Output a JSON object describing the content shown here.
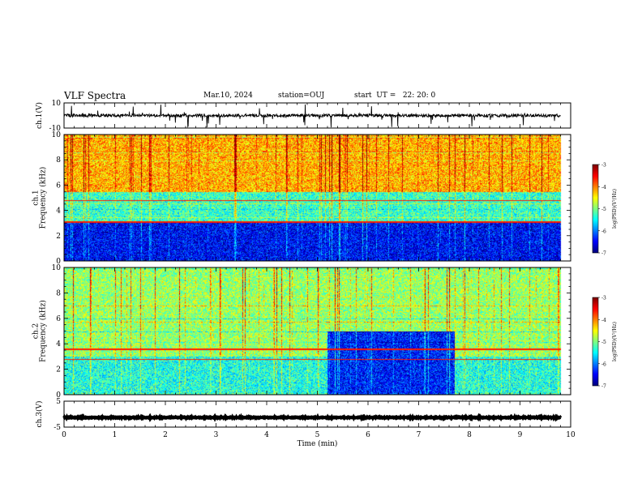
{
  "header": {
    "title": "VLF Spectra",
    "date": "Mar.10, 2024",
    "station": "station=OUJ",
    "start": "start  UT =   22: 20: 0"
  },
  "colors": {
    "axis": "#000000",
    "colormap": [
      "#00007f",
      "#0000ff",
      "#007fff",
      "#00ffff",
      "#00ff7f",
      "#7fff00",
      "#ffff00",
      "#ff7f00",
      "#ff0000",
      "#7f0000"
    ]
  },
  "chart_data": [
    {
      "type": "line",
      "ylabel": "ch.1(V)",
      "ylim": [
        -10,
        10
      ],
      "ytick_labels": [
        "10",
        "-10"
      ],
      "xlim": [
        0,
        10
      ],
      "baseline_v": 0,
      "noise_amplitude_v": 2,
      "spikes": "frequent impulsive spikes reaching ±10 V"
    },
    {
      "type": "heatmap",
      "ylabel": "ch.1\nFrequency (kHz)",
      "ylim": [
        0,
        10
      ],
      "ytick_labels": [
        "0",
        "2",
        "4",
        "6",
        "8",
        "10"
      ],
      "xlim": [
        0,
        10
      ],
      "data_end_min": 9.8,
      "colorbar": {
        "label": "log(PSD)(V²/Hz)",
        "range": [
          -7,
          -3
        ],
        "tick_labels": [
          "-3",
          "-4",
          "-5",
          "-6",
          "-7"
        ]
      },
      "bands": [
        {
          "f_low_khz": 0,
          "f_high_khz": 3.2,
          "level": -6.5
        },
        {
          "f_low_khz": 3.2,
          "f_high_khz": 5.5,
          "level": -5.3
        },
        {
          "f_low_khz": 5.5,
          "f_high_khz": 10,
          "level": -4.2
        }
      ],
      "tones_khz": [
        4.8,
        3.1
      ]
    },
    {
      "type": "heatmap",
      "ylabel": "ch.2\nFrequency (kHz)",
      "ylim": [
        0,
        10
      ],
      "ytick_labels": [
        "0",
        "2",
        "4",
        "6",
        "8",
        "10"
      ],
      "xlim": [
        0,
        10
      ],
      "data_end_min": 9.8,
      "colorbar": {
        "label": "log(PSD)(V²/Hz)",
        "range": [
          -7,
          -3
        ],
        "tick_labels": [
          "-3",
          "-4",
          "-5",
          "-6",
          "-7"
        ]
      },
      "bands": [
        {
          "f_low_khz": 0,
          "f_high_khz": 3.0,
          "level": -5.4
        },
        {
          "f_low_khz": 3.0,
          "f_high_khz": 10,
          "level": -4.9
        }
      ],
      "quiet_region": {
        "t_start_min": 5.2,
        "t_end_min": 7.7,
        "f_high_khz": 5.0,
        "level": -6.4
      },
      "tones_khz": [
        3.6,
        2.8
      ]
    },
    {
      "type": "line",
      "ylabel": "ch.3(V)",
      "ylim": [
        -5,
        5
      ],
      "ytick_labels": [
        "5",
        "-5"
      ],
      "xlim": [
        0,
        10
      ],
      "baseline_v": -1.3,
      "noise_amplitude_v": 0.3
    }
  ],
  "xaxis": {
    "label": "Time  (min)",
    "tick_labels": [
      "0",
      "1",
      "2",
      "3",
      "4",
      "5",
      "6",
      "7",
      "8",
      "9",
      "10"
    ]
  }
}
